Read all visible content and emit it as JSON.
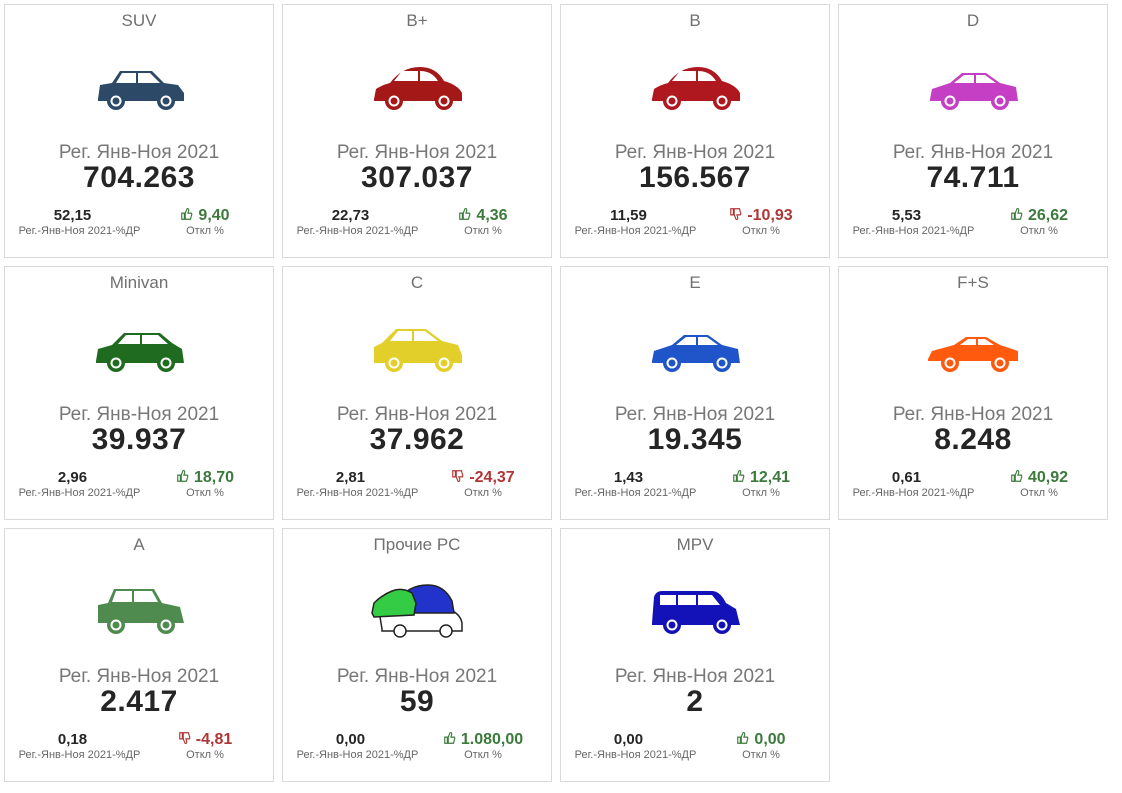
{
  "tiles": [
    {
      "title": "SUV",
      "period": "Рег. Янв-Ноя 2021",
      "value": "704.263",
      "share": "52,15",
      "share_label": "Рег.-Янв-Ноя 2021-%ДР",
      "deviation": "9,40",
      "deviation_label": "Откл %",
      "trend": "up",
      "icon": "suv-car-icon",
      "color": "#2c4a68",
      "shape": "suv"
    },
    {
      "title": "B+",
      "period": "Рег. Янв-Ноя 2021",
      "value": "307.037",
      "share": "22,73",
      "share_label": "Рег.-Янв-Ноя 2021-%ДР",
      "deviation": "4,36",
      "deviation_label": "Откл %",
      "trend": "up",
      "icon": "hatchback-car-icon",
      "color": "#a51818",
      "shape": "beetle"
    },
    {
      "title": "B",
      "period": "Рег. Янв-Ноя 2021",
      "value": "156.567",
      "share": "11,59",
      "share_label": "Рег.-Янв-Ноя 2021-%ДР",
      "deviation": "-10,93",
      "deviation_label": "Откл %",
      "trend": "down",
      "icon": "small-car-icon",
      "color": "#b01820",
      "shape": "beetle"
    },
    {
      "title": "D",
      "period": "Рег. Янв-Ноя 2021",
      "value": "74.711",
      "share": "5,53",
      "share_label": "Рег.-Янв-Ноя 2021-%ДР",
      "deviation": "26,62",
      "deviation_label": "Откл %",
      "trend": "up",
      "icon": "sedan-car-icon",
      "color": "#c43fc4",
      "shape": "sedan"
    },
    {
      "title": "Minivan",
      "period": "Рег. Янв-Ноя 2021",
      "value": "39.937",
      "share": "2,96",
      "share_label": "Рег.-Янв-Ноя 2021-%ДР",
      "deviation": "18,70",
      "deviation_label": "Откл %",
      "trend": "up",
      "icon": "minivan-car-icon",
      "color": "#1f6b1f",
      "shape": "wagon"
    },
    {
      "title": "C",
      "period": "Рег. Янв-Ноя 2021",
      "value": "37.962",
      "share": "2,81",
      "share_label": "Рег.-Янв-Ноя 2021-%ДР",
      "deviation": "-24,37",
      "deviation_label": "Откл %",
      "trend": "down",
      "icon": "compact-car-icon",
      "color": "#e3cf2a",
      "shape": "hatch"
    },
    {
      "title": "E",
      "period": "Рег. Янв-Ноя 2021",
      "value": "19.345",
      "share": "1,43",
      "share_label": "Рег.-Янв-Ноя 2021-%ДР",
      "deviation": "12,41",
      "deviation_label": "Откл %",
      "trend": "up",
      "icon": "executive-car-icon",
      "color": "#1f55c8",
      "shape": "sedan"
    },
    {
      "title": "F+S",
      "period": "Рег. Янв-Ноя 2021",
      "value": "8.248",
      "share": "0,61",
      "share_label": "Рег.-Янв-Ноя 2021-%ДР",
      "deviation": "40,92",
      "deviation_label": "Откл %",
      "trend": "up",
      "icon": "sports-car-icon",
      "color": "#ff5a0e",
      "shape": "sport"
    },
    {
      "title": "A",
      "period": "Рег. Янв-Ноя 2021",
      "value": "2.417",
      "share": "0,18",
      "share_label": "Рег.-Янв-Ноя 2021-%ДР",
      "deviation": "-4,81",
      "deviation_label": "Откл %",
      "trend": "down",
      "icon": "mini-car-icon",
      "color": "#4f8a4f",
      "shape": "box"
    },
    {
      "title": "Прочие PC",
      "period": "Рег. Янв-Ноя 2021",
      "value": "59",
      "share": "0,00",
      "share_label": "Рег.-Янв-Ноя 2021-%ДР",
      "deviation": "1.080,00",
      "deviation_label": "Откл %",
      "trend": "up",
      "icon": "other-cars-icon",
      "color": "#2233cc",
      "shape": "group"
    },
    {
      "title": "MPV",
      "period": "Рег. Янв-Ноя 2021",
      "value": "2",
      "share": "0,00",
      "share_label": "Рег.-Янв-Ноя 2021-%ДР",
      "deviation": "0,00",
      "deviation_label": "Откл %",
      "trend": "up",
      "icon": "mpv-van-icon",
      "color": "#1212b8",
      "shape": "van"
    }
  ],
  "colors": {
    "positive": "#3c7a3c",
    "negative": "#b03535"
  }
}
